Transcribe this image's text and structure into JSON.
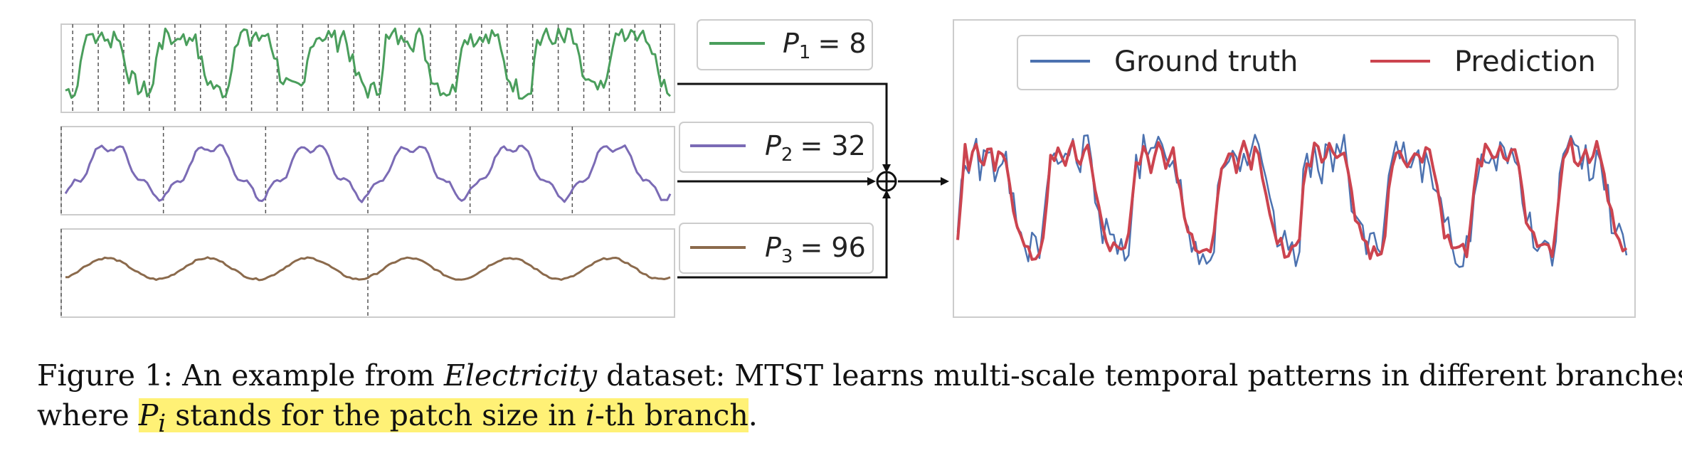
{
  "branches": [
    {
      "label_var": "P",
      "label_sub": "1",
      "label_value": "= 8",
      "color": "#4a9e5c",
      "period": 9,
      "patch_count": 24
    },
    {
      "label_var": "P",
      "label_sub": "2",
      "label_value": "= 32",
      "color": "#7b6bb5",
      "period": 36,
      "patch_count": 6
    },
    {
      "label_var": "P",
      "label_sub": "3",
      "label_value": "= 96",
      "color": "#8b6a4c",
      "period": 48,
      "patch_count": 2
    }
  ],
  "combiner": {
    "symbol": "⊕"
  },
  "output_legend": {
    "ground_truth_label": "Ground truth",
    "ground_truth_color": "#4c72b0",
    "prediction_label": "Prediction",
    "prediction_color": "#cc444f"
  },
  "caption": {
    "figure_label": "Figure 1:",
    "intro": "An example from",
    "dataset": "Electricity",
    "after_dataset": "dataset: MTST learns multi-scale temporal patterns in different branches,",
    "line2_start": "where",
    "highlight_math": "P",
    "highlight_sub": "i",
    "highlight_rest": "stands for the patch size in",
    "highlight_math2": "i",
    "highlight_end": "-th branch",
    "period": "."
  }
}
